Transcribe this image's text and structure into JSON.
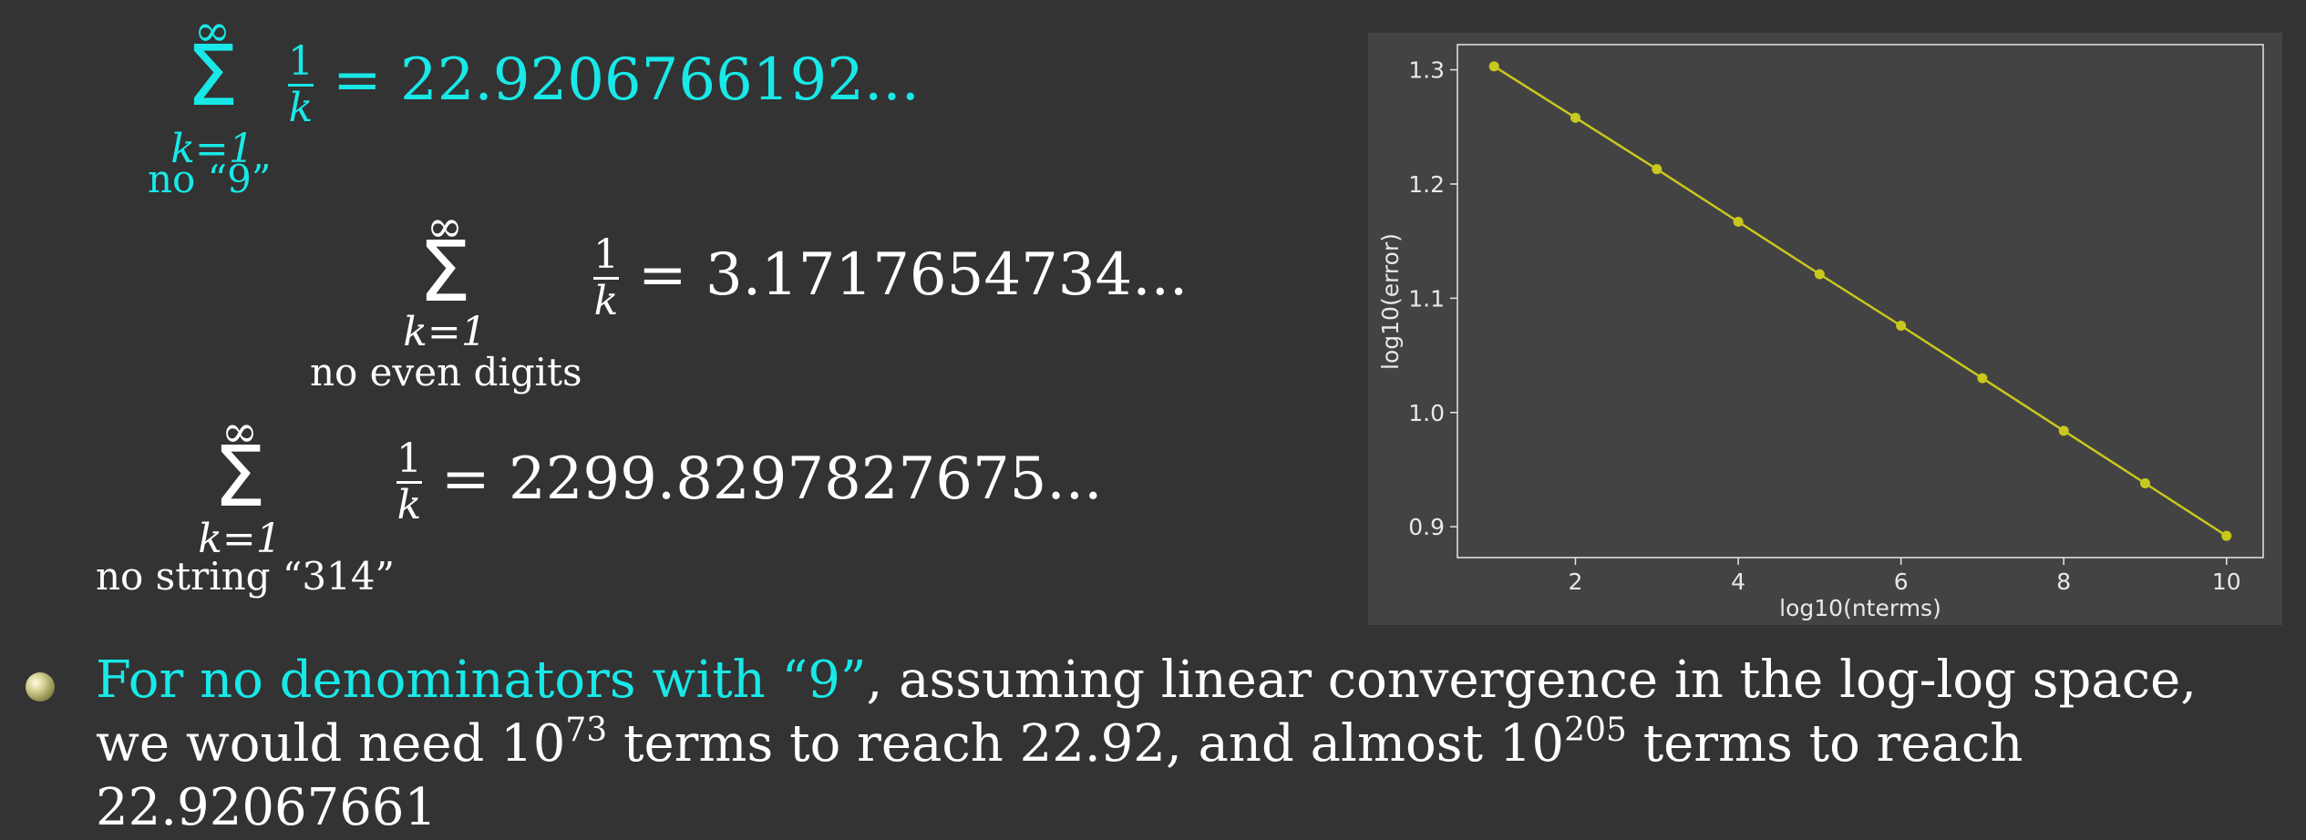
{
  "formulas": [
    {
      "color": "#19e8e8",
      "sum_top": "∞",
      "sigma": "Σ",
      "sum_bottom": "k=1",
      "condition": "no “9”",
      "numerator": "1",
      "denominator": "k",
      "equals": "=",
      "value": "22.9206766192..."
    },
    {
      "color": "#ffffff",
      "sum_top": "∞",
      "sigma": "Σ",
      "sum_bottom": "k=1",
      "condition": "no even digits",
      "numerator": "1",
      "denominator": "k",
      "equals": "=",
      "value": "3.1717654734..."
    },
    {
      "color": "#ffffff",
      "sum_top": "∞",
      "sigma": "Σ",
      "sum_bottom": "k=1",
      "condition": "no string “314”",
      "numerator": "1",
      "denominator": "k",
      "equals": "=",
      "value": "2299.8297827675..."
    }
  ],
  "chart_data": {
    "type": "line",
    "x": [
      1,
      2,
      3,
      4,
      5,
      6,
      7,
      8,
      9,
      10
    ],
    "y": [
      1.303,
      1.258,
      1.213,
      1.167,
      1.121,
      1.076,
      1.03,
      0.984,
      0.938,
      0.892
    ],
    "xlabel": "log10(nterms)",
    "ylabel": "log10(error)",
    "xticks": [
      2,
      4,
      6,
      8,
      10
    ],
    "yticks": [
      0.9,
      1.0,
      1.1,
      1.2,
      1.3
    ],
    "xlim": [
      0.55,
      10.45
    ],
    "ylim": [
      0.873,
      1.322
    ],
    "grid": false,
    "line_color": "#c8c81e",
    "background": "#434343"
  },
  "bullet": {
    "highlight": "For no denominators with “9”",
    "text1": ", assuming linear convergence in the log-log space, we would need 10",
    "sup1": "73",
    "text2": " terms to reach 22.92, and almost 10",
    "sup2": "205",
    "text3": " terms to reach 22.92067661",
    "highlight_color": "#19e8e8"
  }
}
